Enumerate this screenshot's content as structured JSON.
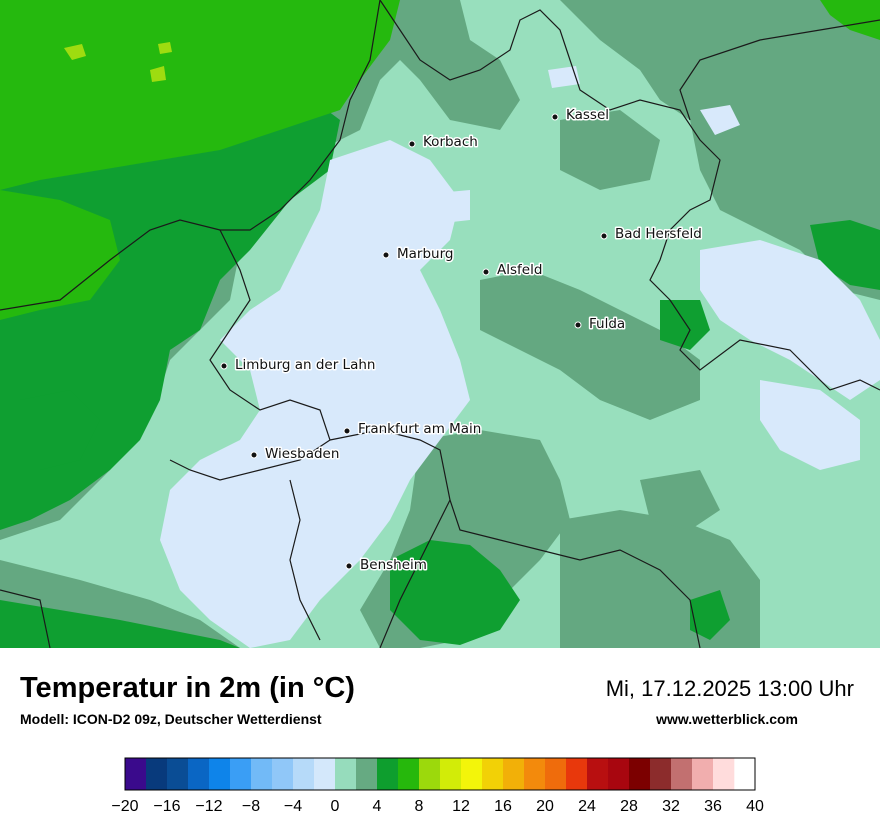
{
  "title": "Temperatur in 2m (in °C)",
  "model": "Modell: ICON-D2 09z, Deutscher Wetterdienst",
  "datetime": "Mi, 17.12.2025 13:00 Uhr",
  "source": "www.wetterblick.com",
  "cities": [
    {
      "name": "Kassel"
    },
    {
      "name": "Korbach"
    },
    {
      "name": "Bad Hersfeld"
    },
    {
      "name": "Marburg"
    },
    {
      "name": "Alsfeld"
    },
    {
      "name": "Fulda"
    },
    {
      "name": "Limburg an der Lahn"
    },
    {
      "name": "Frankfurt am Main"
    },
    {
      "name": "Wiesbaden"
    },
    {
      "name": "Bensheim"
    }
  ],
  "legend": {
    "min": -20,
    "max": 40,
    "step": 2,
    "tick_labels": [
      "−20",
      "−16",
      "−12",
      "−8",
      "−4",
      "0",
      "4",
      "8",
      "12",
      "16",
      "20",
      "24",
      "28",
      "32",
      "36",
      "40"
    ],
    "colors": [
      "#3a0a8c",
      "#083a7c",
      "#0a4d95",
      "#0a66c4",
      "#0e84ea",
      "#3a9ef5",
      "#72baf7",
      "#90c7f8",
      "#b6daf9",
      "#d4e8fb",
      "#96dcbc",
      "#66aa82",
      "#0e9e2e",
      "#26b80c",
      "#9cd90c",
      "#d2ec08",
      "#f3f50a",
      "#f2d106",
      "#f2b008",
      "#f38a0c",
      "#ef6c0c",
      "#e8380c",
      "#b80f10",
      "#a8060f",
      "#7c0000",
      "#8c2c2c",
      "#c27070",
      "#f1aeae",
      "#ffdcdc"
    ]
  },
  "palette": {
    "temp_0_2": "#d8e9fb",
    "temp_2_4": "#98dfbd",
    "temp_4_6": "#64a881",
    "temp_6_8": "#0f9f31",
    "temp_8_10": "#25b90e",
    "temp_10_12": "#9edc10",
    "border": "#1a1a1a"
  }
}
